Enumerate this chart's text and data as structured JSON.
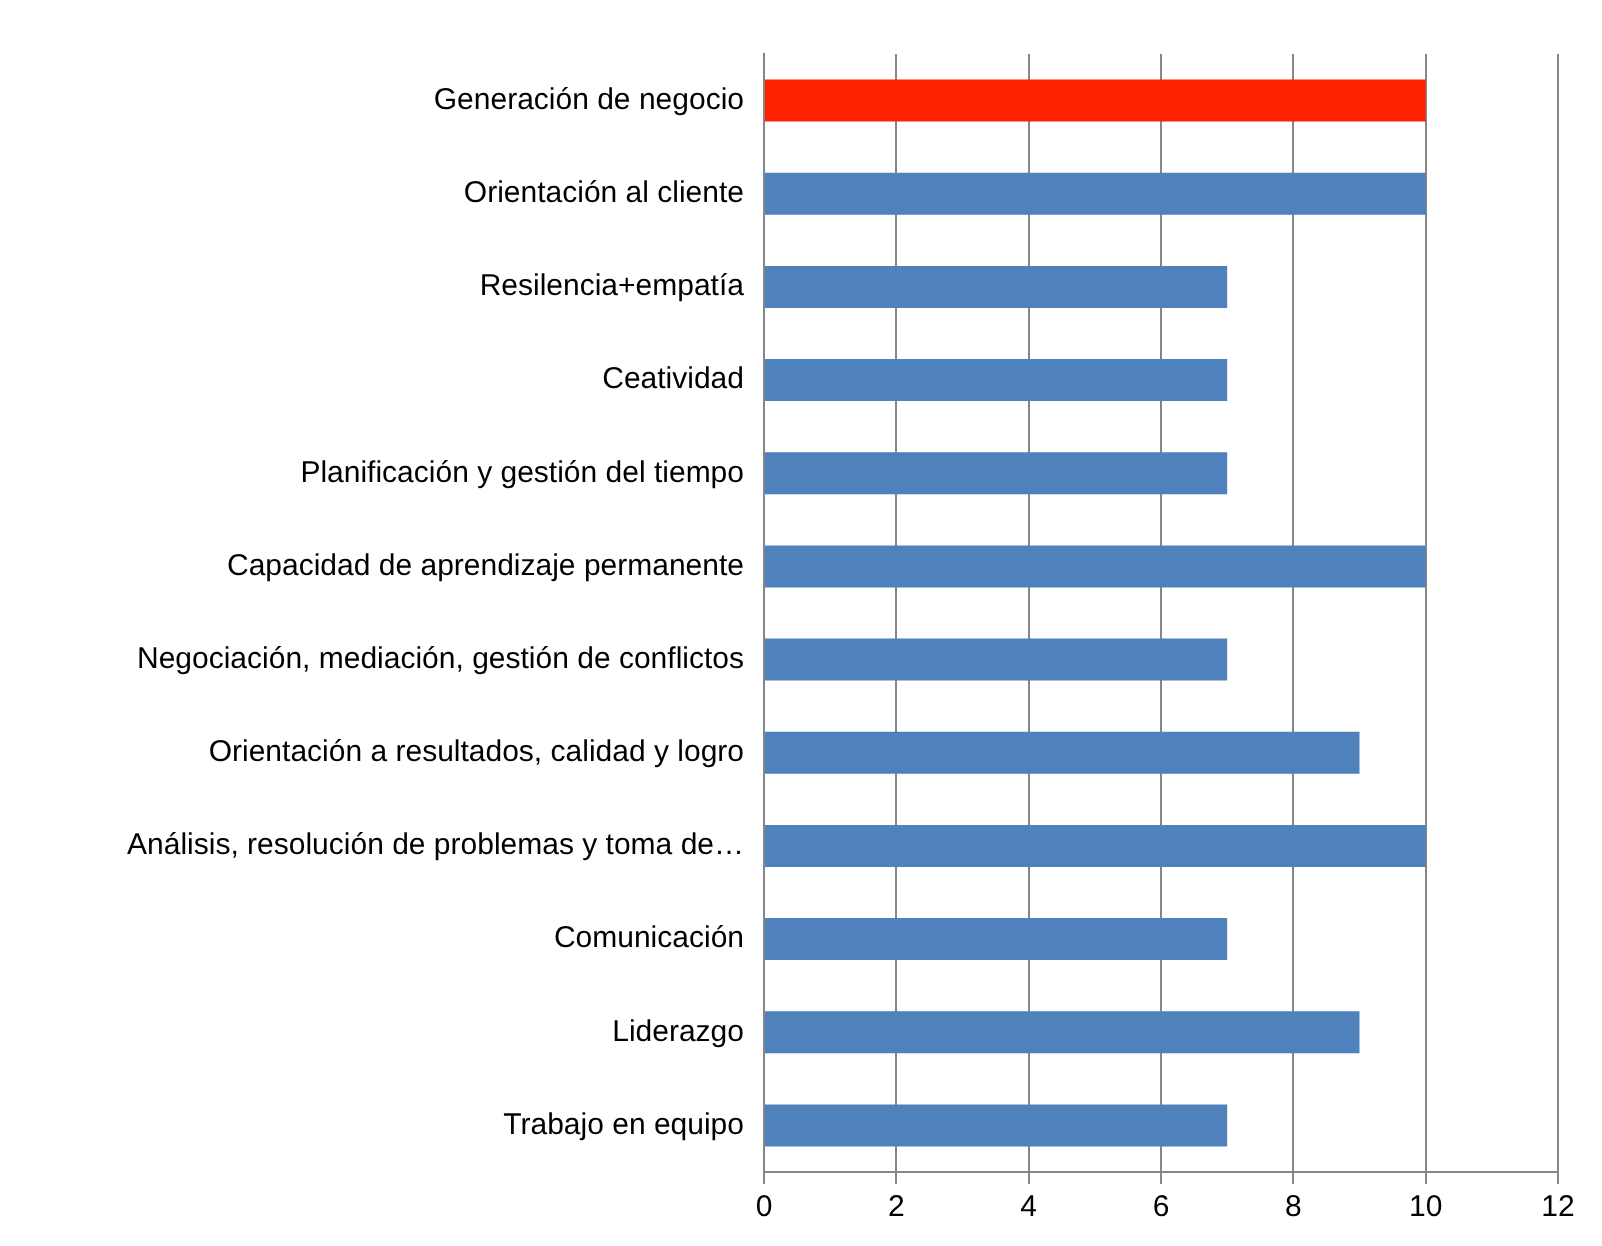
{
  "chart_data": {
    "type": "bar",
    "orientation": "horizontal",
    "categories": [
      "Generación de negocio",
      "Orientación al cliente",
      "Resilencia+empatía",
      "Ceatividad",
      "Planificación y gestión del tiempo",
      "Capacidad de aprendizaje permanente",
      "Negociación, mediación, gestión de conflictos",
      "Orientación a resultados, calidad y logro",
      "Análisis, resolución de problemas y toma de…",
      "Comunicación",
      "Liderazgo",
      "Trabajo en equipo"
    ],
    "values": [
      10,
      10,
      7,
      7,
      7,
      10,
      7,
      9,
      10,
      7,
      9,
      7
    ],
    "colors": [
      "#ff2200",
      "#4f81bd",
      "#4f81bd",
      "#4f81bd",
      "#4f81bd",
      "#4f81bd",
      "#4f81bd",
      "#4f81bd",
      "#4f81bd",
      "#4f81bd",
      "#4f81bd",
      "#4f81bd"
    ],
    "xlim": [
      0,
      12
    ],
    "xticks": [
      0,
      2,
      4,
      6,
      8,
      10,
      12
    ],
    "grid": "x",
    "legend": false
  }
}
